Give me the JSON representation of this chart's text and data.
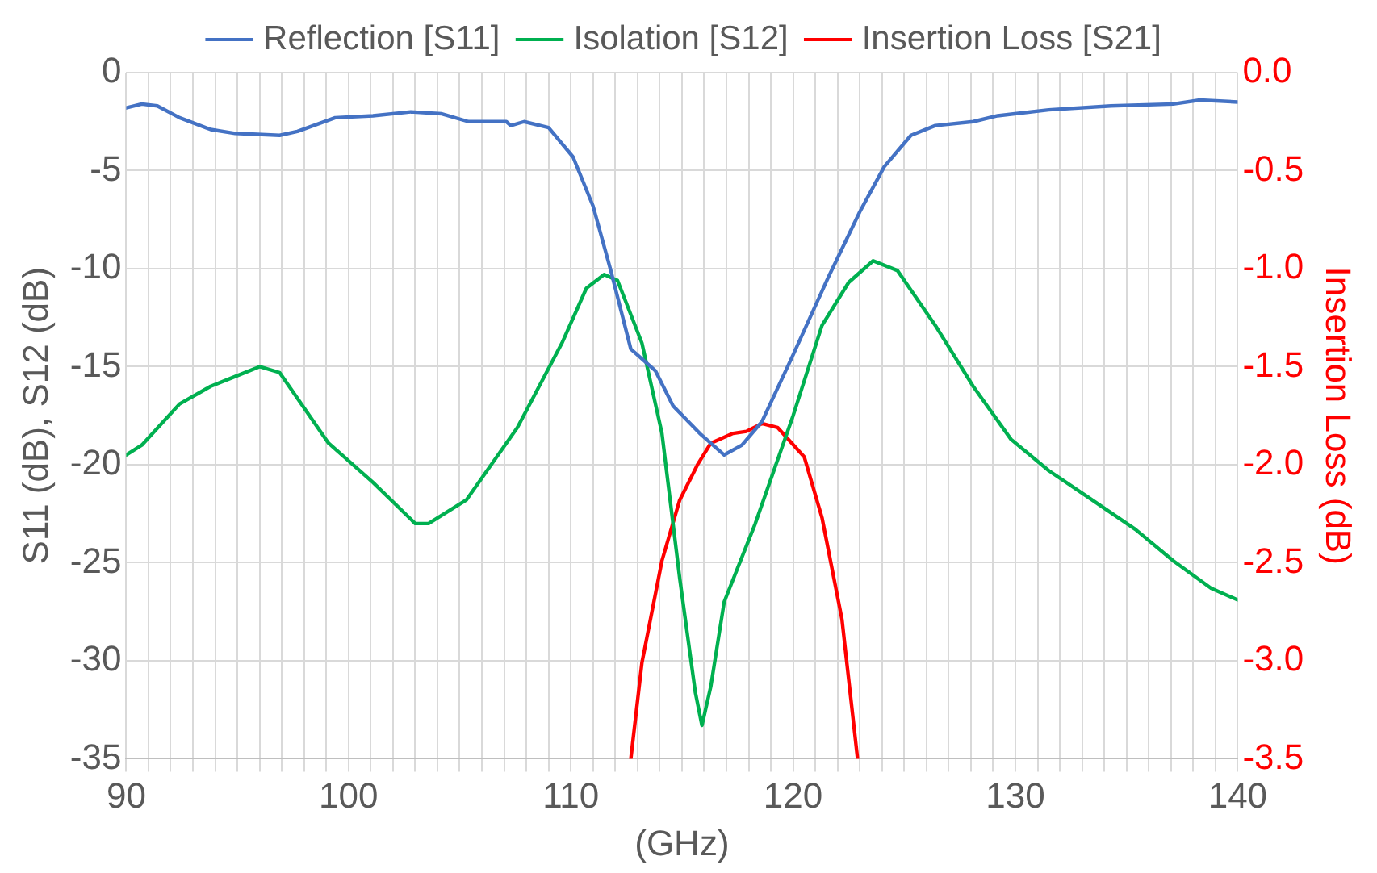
{
  "chart_data": {
    "type": "line",
    "xlabel": "(GHz)",
    "ylabel": "S11 (dB), S12 (dB)",
    "y2label": "Insertion Loss (dB)",
    "legend": "top",
    "grid": true,
    "marker": "none",
    "xlim": [
      90,
      140
    ],
    "ylim": [
      -35,
      0
    ],
    "y2lim": [
      -3.5,
      0
    ],
    "xticks": [
      90,
      {
        "value": 91,
        "label": null
      },
      {
        "value": 92,
        "label": null
      },
      {
        "value": 93,
        "label": null
      },
      {
        "value": 94,
        "label": null
      },
      {
        "value": 95,
        "label": null
      },
      {
        "value": 96,
        "label": null
      },
      {
        "value": 97,
        "label": null
      },
      {
        "value": 98,
        "label": null
      },
      {
        "value": 99,
        "label": null
      },
      100,
      {
        "value": 101,
        "label": null
      },
      {
        "value": 102,
        "label": null
      },
      {
        "value": 103,
        "label": null
      },
      {
        "value": 104,
        "label": null
      },
      {
        "value": 105,
        "label": null
      },
      {
        "value": 106,
        "label": null
      },
      {
        "value": 107,
        "label": null
      },
      {
        "value": 108,
        "label": null
      },
      {
        "value": 109,
        "label": null
      },
      110,
      {
        "value": 111,
        "label": null
      },
      {
        "value": 112,
        "label": null
      },
      {
        "value": 113,
        "label": null
      },
      {
        "value": 114,
        "label": null
      },
      {
        "value": 115,
        "label": null
      },
      {
        "value": 116,
        "label": null
      },
      {
        "value": 117,
        "label": null
      },
      {
        "value": 118,
        "label": null
      },
      {
        "value": 119,
        "label": null
      },
      120,
      {
        "value": 121,
        "label": null
      },
      {
        "value": 122,
        "label": null
      },
      {
        "value": 123,
        "label": null
      },
      {
        "value": 124,
        "label": null
      },
      {
        "value": 125,
        "label": null
      },
      {
        "value": 126,
        "label": null
      },
      {
        "value": 127,
        "label": null
      },
      {
        "value": 128,
        "label": null
      },
      {
        "value": 129,
        "label": null
      },
      130,
      {
        "value": 131,
        "label": null
      },
      {
        "value": 132,
        "label": null
      },
      {
        "value": 133,
        "label": null
      },
      {
        "value": 134,
        "label": null
      },
      {
        "value": 135,
        "label": null
      },
      {
        "value": 136,
        "label": null
      },
      {
        "value": 137,
        "label": null
      },
      {
        "value": 138,
        "label": null
      },
      {
        "value": 139,
        "label": null
      },
      140
    ],
    "yticks": [
      -35,
      -30,
      -25,
      -20,
      -15,
      -10,
      -5,
      0
    ],
    "y2ticks": [
      {
        "value": -3.5,
        "label": "-3.5"
      },
      {
        "value": -3,
        "label": "-3.0"
      },
      {
        "value": -2.5,
        "label": "-2.5"
      },
      {
        "value": -2,
        "label": "-2.0"
      },
      {
        "value": -1.5,
        "label": "-1.5"
      },
      {
        "value": -1,
        "label": "-1.0"
      },
      {
        "value": -0.5,
        "label": "-0.5"
      },
      {
        "value": 0,
        "label": "0.0"
      }
    ],
    "series": [
      {
        "name": "Reflection [S11]",
        "color": "#4472c4",
        "x": [
          90,
          90.7,
          91.4,
          92.4,
          93.8,
          94.9,
          96.9,
          97.7,
          99.4,
          101.1,
          102.8,
          104.2,
          105.4,
          107.1,
          107.3,
          107.9,
          109,
          110.1,
          111,
          111.8,
          112.7,
          113.8,
          114.6,
          115.8,
          116.9,
          117.7,
          118.6,
          120,
          121.6,
          123,
          124.1,
          125.3,
          126.4,
          128.1,
          129.2,
          131.5,
          134.3,
          137.1,
          138.3,
          140
        ],
        "values": [
          -1.8,
          -1.6,
          -1.7,
          -2.3,
          -2.9,
          -3.1,
          -3.2,
          -3,
          -2.3,
          -2.2,
          -2,
          -2.1,
          -2.5,
          -2.5,
          -2.7,
          -2.5,
          -2.8,
          -4.3,
          -6.8,
          -10.1,
          -14.1,
          -15.2,
          -17,
          -18.4,
          -19.5,
          -19,
          -17.8,
          -14.4,
          -10.4,
          -7.1,
          -4.8,
          -3.2,
          -2.7,
          -2.5,
          -2.2,
          -1.9,
          -1.7,
          -1.6,
          -1.4,
          -1.5
        ]
      },
      {
        "name": "Isolation [S12]",
        "color": "#00b050",
        "x": [
          90,
          90.7,
          92.4,
          93.8,
          94.9,
          96,
          96.9,
          99.1,
          101.1,
          103,
          103.6,
          105.3,
          107.6,
          109.6,
          110.7,
          111.5,
          112.1,
          113.2,
          114.1,
          114.9,
          115.6,
          115.9,
          116.3,
          116.9,
          118.3,
          120,
          121.3,
          122.5,
          123.6,
          124.7,
          126.4,
          128.1,
          129.8,
          131.5,
          133.2,
          135.4,
          137.1,
          138.8,
          140
        ],
        "values": [
          -19.5,
          -19,
          -16.9,
          -16,
          -15.5,
          -15,
          -15.3,
          -18.9,
          -20.9,
          -23,
          -23,
          -21.8,
          -18.1,
          -13.8,
          -11,
          -10.3,
          -10.6,
          -13.8,
          -18.4,
          -25.8,
          -31.6,
          -33.3,
          -31.3,
          -27,
          -23,
          -17.5,
          -12.9,
          -10.7,
          -9.6,
          -10.1,
          -12.9,
          -16,
          -18.7,
          -20.3,
          -21.6,
          -23.3,
          -24.9,
          -26.3,
          -26.9
        ]
      },
      {
        "name": "Insertion Loss [S21]",
        "color": "#ff0000",
        "axis": "y2",
        "x": [
          112.7,
          113.2,
          114.1,
          114.9,
          115.7,
          116.3,
          117.3,
          117.9,
          118.6,
          119.3,
          120.5,
          121.3,
          122.2,
          122.9
        ],
        "values": [
          -3.5,
          -3.01,
          -2.49,
          -2.18,
          -2,
          -1.89,
          -1.84,
          -1.83,
          -1.79,
          -1.81,
          -1.96,
          -2.27,
          -2.79,
          -3.5
        ]
      }
    ]
  }
}
